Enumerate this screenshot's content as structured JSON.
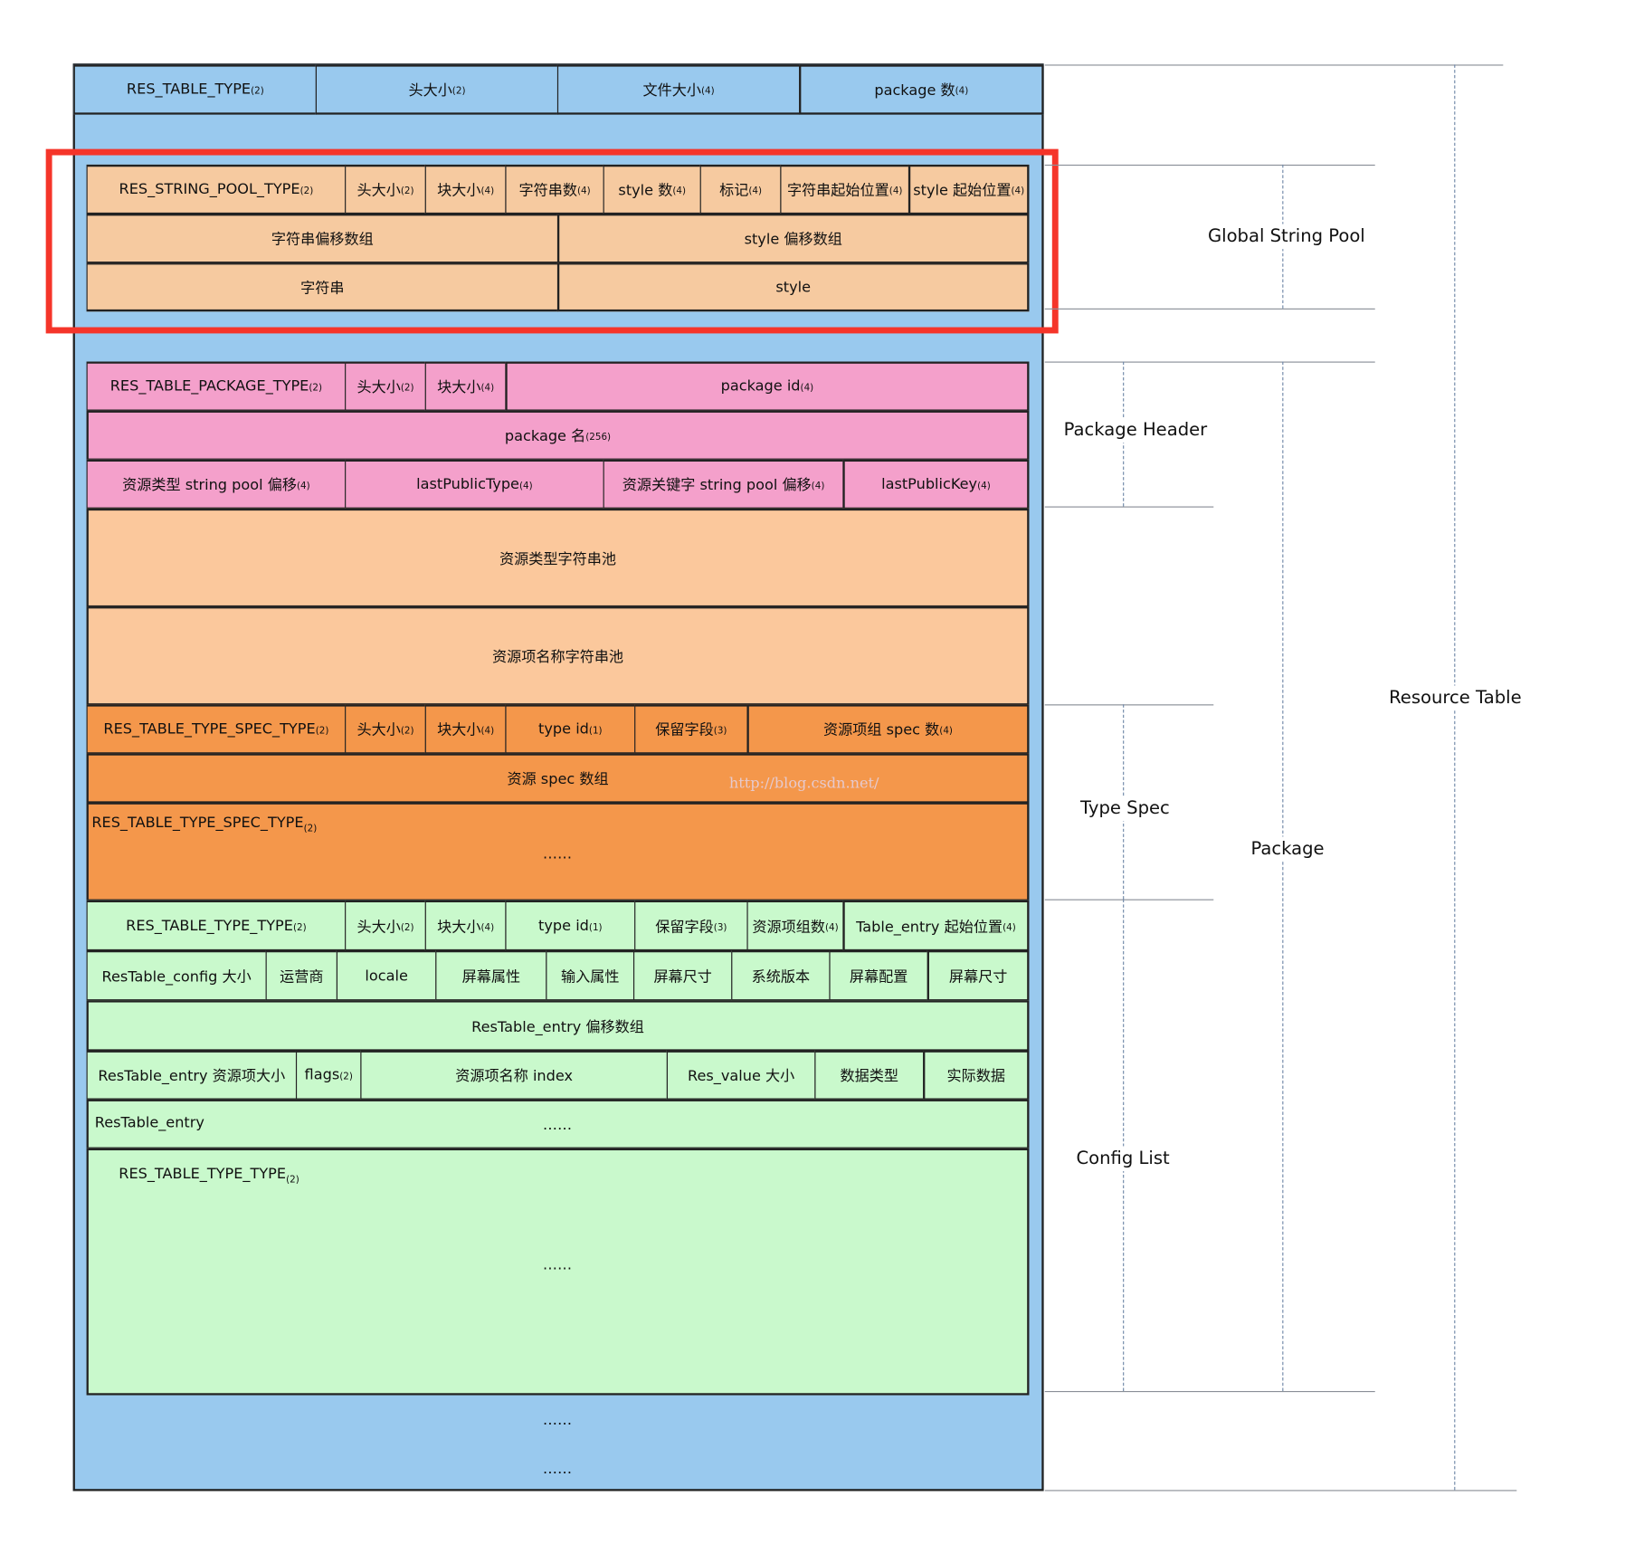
{
  "colors": {
    "table": "#99c9ee",
    "string_pool": "#f6caa0",
    "package_header": "#f4a0cb",
    "key_pools": "#fbc89c",
    "type_spec": "#f4974b",
    "config": "#c9f9cc",
    "highlight": "#f5352a"
  },
  "table_header": [
    {
      "text": "RES_TABLE_TYPE",
      "sub": "(2)"
    },
    {
      "text": "头大小",
      "sub": "(2)"
    },
    {
      "text": "文件大小",
      "sub": "(4)"
    },
    {
      "text": "package 数",
      "sub": "(4)"
    }
  ],
  "string_pool": {
    "row1": [
      {
        "text": "RES_STRING_POOL_TYPE",
        "sub": "(2)"
      },
      {
        "text": "头大小",
        "sub": "(2)"
      },
      {
        "text": "块大小",
        "sub": "(4)"
      },
      {
        "text": "字符串数",
        "sub": "(4)"
      },
      {
        "text": "style 数",
        "sub": "(4)"
      },
      {
        "text": "标记",
        "sub": "(4)"
      },
      {
        "text": "字符串起始位置",
        "sub": "(4)"
      },
      {
        "text": "style 起始位置",
        "sub": "(4)"
      }
    ],
    "row2": [
      {
        "text": "字符串偏移数组",
        "sub": ""
      },
      {
        "text": "style 偏移数组",
        "sub": ""
      }
    ],
    "row3": [
      {
        "text": "字符串",
        "sub": ""
      },
      {
        "text": "style",
        "sub": ""
      }
    ]
  },
  "package": {
    "row1": [
      {
        "text": "RES_TABLE_PACKAGE_TYPE",
        "sub": "(2)"
      },
      {
        "text": "头大小",
        "sub": "(2)"
      },
      {
        "text": "块大小",
        "sub": "(4)"
      },
      {
        "text": "package id",
        "sub": "(4)"
      }
    ],
    "row2": [
      {
        "text": "package 名",
        "sub": "(256)"
      }
    ],
    "row3": [
      {
        "text": "资源类型 string pool 偏移",
        "sub": "(4)"
      },
      {
        "text": "lastPublicType",
        "sub": "(4)"
      },
      {
        "text": "资源关键字 string pool 偏移",
        "sub": "(4)"
      },
      {
        "text": "lastPublicKey",
        "sub": "(4)"
      }
    ],
    "row4": [
      {
        "text": "资源类型字符串池",
        "sub": ""
      }
    ],
    "row5": [
      {
        "text": "资源项名称字符串池",
        "sub": ""
      }
    ]
  },
  "type_spec": {
    "row1": [
      {
        "text": "RES_TABLE_TYPE_SPEC_TYPE",
        "sub": "(2)"
      },
      {
        "text": "头大小",
        "sub": "(2)"
      },
      {
        "text": "块大小",
        "sub": "(4)"
      },
      {
        "text": "type id",
        "sub": "(1)"
      },
      {
        "text": "保留字段",
        "sub": "(3)"
      },
      {
        "text": "资源项组 spec 数",
        "sub": "(4)"
      }
    ],
    "row2": [
      {
        "text": "资源 spec 数组",
        "sub": ""
      }
    ],
    "next_label": "RES_TABLE_TYPE_SPEC_TYPE",
    "next_sub": "(2)",
    "ellipsis": "……",
    "watermark": "http://blog.csdn.net/"
  },
  "config": {
    "row1": [
      {
        "text": "RES_TABLE_TYPE_TYPE",
        "sub": "(2)"
      },
      {
        "text": "头大小",
        "sub": "(2)"
      },
      {
        "text": "块大小",
        "sub": "(4)"
      },
      {
        "text": "type id",
        "sub": "(1)"
      },
      {
        "text": "保留字段",
        "sub": "(3)"
      },
      {
        "text": "资源项组数",
        "sub": "(4)"
      },
      {
        "text": "Table_entry 起始位置",
        "sub": "(4)"
      }
    ],
    "row2": [
      {
        "text": "ResTable_config 大小",
        "sub": ""
      },
      {
        "text": "运营商",
        "sub": ""
      },
      {
        "text": "locale",
        "sub": ""
      },
      {
        "text": "屏幕属性",
        "sub": ""
      },
      {
        "text": "输入属性",
        "sub": ""
      },
      {
        "text": "屏幕尺寸",
        "sub": ""
      },
      {
        "text": "系统版本",
        "sub": ""
      },
      {
        "text": "屏幕配置",
        "sub": ""
      },
      {
        "text": "屏幕尺寸",
        "sub": ""
      }
    ],
    "row3": [
      {
        "text": "ResTable_entry 偏移数组",
        "sub": ""
      }
    ],
    "row4": [
      {
        "text": "ResTable_entry 资源项大小",
        "sub": ""
      },
      {
        "text": "flags",
        "sub": "(2)"
      },
      {
        "text": "资源项名称 index",
        "sub": ""
      },
      {
        "text": "Res_value 大小",
        "sub": ""
      },
      {
        "text": "数据类型",
        "sub": ""
      },
      {
        "text": "实际数据",
        "sub": ""
      }
    ],
    "entry_label": "ResTable_entry",
    "entry_ellipsis": "……",
    "next_label": "RES_TABLE_TYPE_TYPE",
    "next_sub": "(2)",
    "next_ellipsis": "……"
  },
  "trailing": [
    "……",
    "……"
  ],
  "annotations": {
    "resource_table": "Resource Table",
    "global_string_pool": "Global String Pool",
    "package": "Package",
    "package_header": "Package Header",
    "type_spec": "Type Spec",
    "config_list": "Config List"
  }
}
